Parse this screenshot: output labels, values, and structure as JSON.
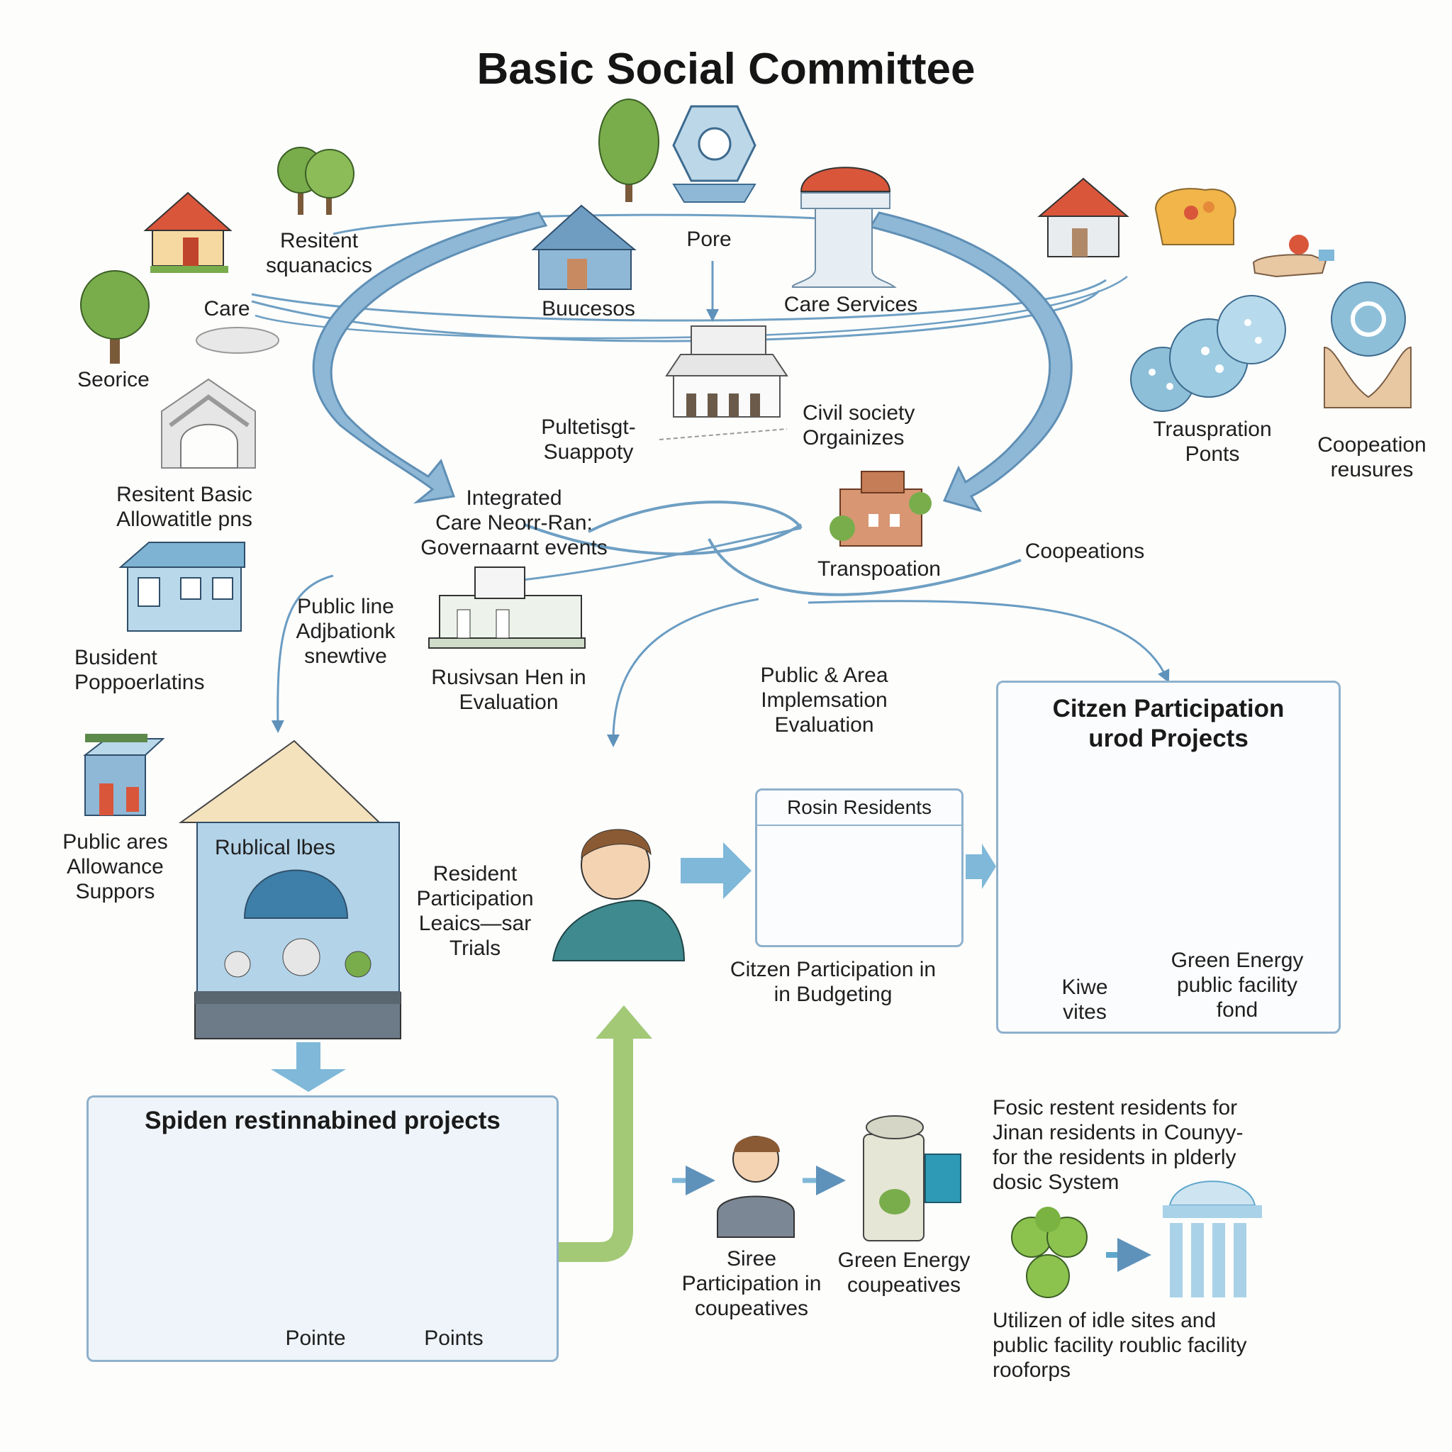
{
  "title": "Basic Social Committee",
  "top_labels": {
    "resitent": "Resitent\nsquanacics",
    "care": "Care",
    "seorice": "Seorice",
    "pore": "Pore",
    "buucesos": "Buucesos",
    "care_services": "Care Services",
    "pultetisgt": "Pultetisgt-\nSuappoty",
    "civil_society": "Civil society\nOrgainizes",
    "trauspration": "Trauspration\nPonts",
    "coopeation": "Coopeation\nreusures",
    "resitent_basic": "Resitent Basic\nAllowatitle pns",
    "integrated": "Integrated\nCare Neorr-Ran:\nGovernaarnt events",
    "transpoation": "Transpoation",
    "coopeations": "Coopeations",
    "busident": "Busident\nPoppoerlatins",
    "public_line": "Public line\nAdjbationk\nsnewtive",
    "rusivsan": "Rusivsan Hen in\nEvaluation",
    "public_area": "Public & Area\nImplemsation\nEvaluation"
  },
  "middle_labels": {
    "public_ares": "Public ares\nAllowance\nSuppors",
    "rublical": "Rublical lbes",
    "resident_participation": "Resident\nParticipation\nLeaics—sar\nTrials",
    "rosin_residents": "Rosin Residents",
    "citizen_budgeting": "Citzen Participation in\nin Budgeting"
  },
  "right_panel": {
    "title": "Citzen Participation\nurod Projects",
    "kiwe": "Kiwe\nvites",
    "green_energy": "Green Energy\npublic facility\nfond"
  },
  "bottom_panel": {
    "title": "Spiden restinnabined projects",
    "pointe": "Pointe",
    "points": "Points"
  },
  "bottom_labels": {
    "siree": "Siree\nParticipation in\ncoupeatives",
    "green_coops": "Green Energy\ncoupeatives",
    "fosic": "Fosic restent residents for\nJinan residents in Counyy-\nfor the residents in plderly\ndosic System",
    "utilizen": "Utilizen of idle sites and\npublic facility roublic facility\nrooforps"
  },
  "colors": {
    "arrow_blue": "#7aa8c9",
    "arrow_green": "#9cc46a",
    "panel_border": "#8fb1cc",
    "panel_fill": "#eef4f9",
    "roof_red": "#d9563b",
    "tree_green": "#79ad4c",
    "bubble_blue": "#8ebfd8"
  }
}
